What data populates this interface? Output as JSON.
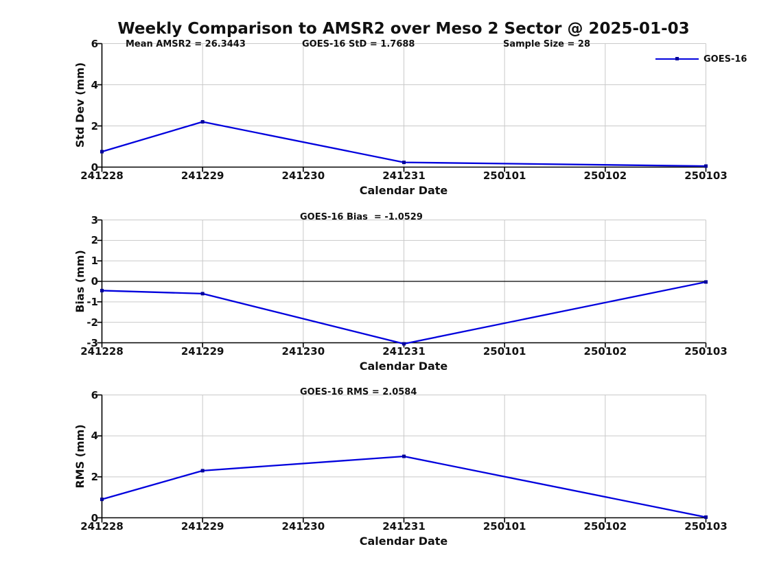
{
  "page": {
    "title": "Weekly Comparison to AMSR2 over Meso 2 Sector @ 2025-01-03",
    "background": "#ffffff"
  },
  "legend": {
    "label": "GOES-16",
    "position": "top-right"
  },
  "colors": {
    "line": "#0000dd",
    "marker": "#000099",
    "grid": "#c9c9c9",
    "axis": "#000000",
    "zero_line": "#000000",
    "text": "#111111"
  },
  "chart_data": [
    {
      "type": "line",
      "ylabel": "Std Dev (mm)",
      "xlabel": "Calendar Date",
      "ylim": [
        0,
        6
      ],
      "yticks": [
        0,
        2,
        4,
        6
      ],
      "xticks": [
        "241228",
        "241229",
        "241230",
        "241231",
        "250101",
        "250102",
        "250103"
      ],
      "grid": true,
      "zero_line": false,
      "annotations": [
        "Mean AMSR2 = 26.3443",
        "GOES-16 StD = 1.7688",
        "Sample Size = 28"
      ],
      "series": [
        {
          "name": "GOES-16",
          "points": [
            [
              "241228",
              0.75
            ],
            [
              "241229",
              2.2
            ],
            [
              "241231",
              0.23
            ],
            [
              "250103",
              0.05
            ]
          ]
        }
      ]
    },
    {
      "type": "line",
      "ylabel": "Bias (mm)",
      "xlabel": "Calendar Date",
      "ylim": [
        -3,
        3
      ],
      "yticks": [
        -3,
        -2,
        -1,
        0,
        1,
        2,
        3
      ],
      "xticks": [
        "241228",
        "241229",
        "241230",
        "241231",
        "250101",
        "250102",
        "250103"
      ],
      "grid": true,
      "zero_line": true,
      "annotations": [
        "GOES-16 Bias  = -1.0529"
      ],
      "series": [
        {
          "name": "GOES-16",
          "points": [
            [
              "241228",
              -0.45
            ],
            [
              "241229",
              -0.6
            ],
            [
              "241231",
              -3.05
            ],
            [
              "250103",
              -0.03
            ]
          ]
        }
      ]
    },
    {
      "type": "line",
      "ylabel": "RMS (mm)",
      "xlabel": "Calendar Date",
      "ylim": [
        0,
        6
      ],
      "yticks": [
        0,
        2,
        4,
        6
      ],
      "xticks": [
        "241228",
        "241229",
        "241230",
        "241231",
        "250101",
        "250102",
        "250103"
      ],
      "grid": true,
      "zero_line": false,
      "annotations": [
        "GOES-16 RMS = 2.0584"
      ],
      "series": [
        {
          "name": "GOES-16",
          "points": [
            [
              "241228",
              0.9
            ],
            [
              "241229",
              2.3
            ],
            [
              "241231",
              3.0
            ],
            [
              "250103",
              0.03
            ]
          ]
        }
      ]
    }
  ]
}
